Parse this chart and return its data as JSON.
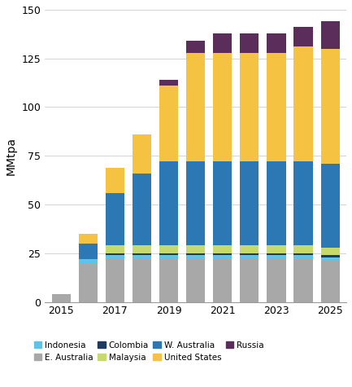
{
  "years": [
    2015,
    2016,
    2017,
    2018,
    2019,
    2020,
    2021,
    2022,
    2023,
    2024,
    2025
  ],
  "series_order": [
    "E. Australia",
    "Indonesia",
    "Colombia",
    "Malaysia",
    "W. Australia",
    "United States",
    "Russia"
  ],
  "series": {
    "Indonesia": [
      0,
      2,
      2,
      2,
      2,
      2,
      2,
      2,
      2,
      2,
      2
    ],
    "E. Australia": [
      4,
      20,
      22,
      22,
      22,
      22,
      22,
      22,
      22,
      22,
      21
    ],
    "Colombia": [
      0,
      0,
      1,
      1,
      1,
      1,
      1,
      1,
      1,
      1,
      1
    ],
    "Malaysia": [
      0,
      0,
      4,
      4,
      4,
      4,
      4,
      4,
      4,
      4,
      4
    ],
    "W. Australia": [
      0,
      8,
      27,
      37,
      43,
      43,
      43,
      43,
      43,
      43,
      43
    ],
    "United States": [
      0,
      5,
      13,
      20,
      39,
      56,
      56,
      56,
      56,
      59,
      59
    ],
    "Russia": [
      0,
      0,
      0,
      0,
      3,
      6,
      10,
      10,
      10,
      10,
      14
    ]
  },
  "colors": {
    "Indonesia": "#5bc4e8",
    "E. Australia": "#a8a8a8",
    "Colombia": "#1e3a5f",
    "Malaysia": "#c8d96b",
    "W. Australia": "#2b78b4",
    "United States": "#f5c242",
    "Russia": "#5a2d5a"
  },
  "ylabel": "MMtpa",
  "ylim": [
    0,
    150
  ],
  "yticks": [
    0,
    25,
    50,
    75,
    100,
    125,
    150
  ],
  "xticks": [
    2015,
    2017,
    2019,
    2021,
    2023,
    2025
  ],
  "legend_row1": [
    "Indonesia",
    "E. Australia",
    "Colombia",
    "Malaysia"
  ],
  "legend_row2": [
    "W. Australia",
    "United States",
    "Russia"
  ],
  "background_color": "#ffffff"
}
